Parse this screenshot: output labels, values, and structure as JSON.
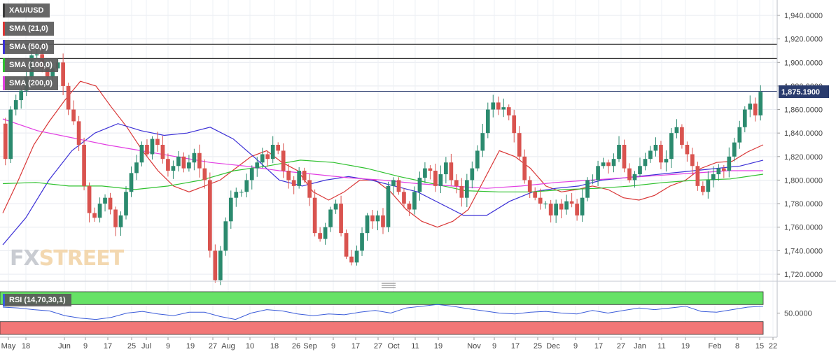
{
  "legend": [
    {
      "label": "XAU/USD",
      "color": "#3a3a3a"
    },
    {
      "label": "SMA (21,0)",
      "color": "#d93636"
    },
    {
      "label": "SMA (50,0)",
      "color": "#3b2fd6"
    },
    {
      "label": "SMA (100,0)",
      "color": "#2fc12f"
    },
    {
      "label": "SMA (200,0)",
      "color": "#e23ee2"
    }
  ],
  "rsi": {
    "label": "RSI (14,70,30,1)",
    "line_color": "#3a5bd9",
    "overbought_color": "#66e266",
    "oversold_color": "#f27777",
    "ticks": [
      "50.0000"
    ]
  },
  "watermark": {
    "part1": "FX",
    "part2": "STREET"
  },
  "chart_data": {
    "type": "candlestick",
    "title": "",
    "ylim": [
      1710,
      1950
    ],
    "yticks": [
      "1,940.0000",
      "1,920.0000",
      "1,900.0000",
      "1,880.0000",
      "1,860.0000",
      "1,840.0000",
      "1,820.0000",
      "1,800.0000",
      "1,780.0000",
      "1,760.0000",
      "1,740.0000",
      "1,720.0000"
    ],
    "xticks": [
      "May",
      "18",
      "Jun",
      "9",
      "17",
      "25",
      "Jul",
      "9",
      "19",
      "27",
      "Aug",
      "10",
      "18",
      "26",
      "Sep",
      "9",
      "17",
      "27",
      "Oct",
      "11",
      "19",
      "Nov",
      "9",
      "17",
      "25",
      "Dec",
      "9",
      "17",
      "27",
      "Jan",
      "11",
      "19",
      "Feb",
      "8",
      "15",
      "22"
    ],
    "last_price": "1,875.1900",
    "hlines": [
      1915.5,
      1903.5,
      1875.5
    ],
    "candle_colors": {
      "up": "#2b8a6e",
      "down": "#d9534f"
    },
    "anchors": [
      1848,
      1818,
      1860,
      1868,
      1876,
      1888,
      1906,
      1907,
      1895,
      1888,
      1895,
      1900,
      1880,
      1860,
      1850,
      1830,
      1795,
      1772,
      1768,
      1780,
      1785,
      1775,
      1760,
      1770,
      1790,
      1806,
      1815,
      1830,
      1822,
      1835,
      1830,
      1818,
      1808,
      1812,
      1820,
      1810,
      1815,
      1823,
      1810,
      1800,
      1740,
      1715,
      1740,
      1765,
      1785,
      1790,
      1790,
      1800,
      1810,
      1815,
      1822,
      1818,
      1830,
      1825,
      1808,
      1800,
      1795,
      1808,
      1800,
      1785,
      1755,
      1750,
      1760,
      1775,
      1780,
      1755,
      1735,
      1730,
      1740,
      1755,
      1770,
      1765,
      1770,
      1760,
      1795,
      1800,
      1790,
      1780,
      1775,
      1790,
      1802,
      1810,
      1808,
      1795,
      1805,
      1815,
      1800,
      1795,
      1785,
      1800,
      1810,
      1825,
      1840,
      1860,
      1866,
      1860,
      1862,
      1855,
      1840,
      1820,
      1800,
      1790,
      1785,
      1780,
      1780,
      1770,
      1780,
      1775,
      1782,
      1780,
      1770,
      1785,
      1800,
      1800,
      1812,
      1815,
      1812,
      1818,
      1830,
      1810,
      1800,
      1805,
      1812,
      1818,
      1825,
      1830,
      1815,
      1818,
      1840,
      1845,
      1830,
      1822,
      1812,
      1795,
      1790,
      1800,
      1805,
      1810,
      1808,
      1820,
      1832,
      1845,
      1860,
      1865,
      1855,
      1875
    ],
    "series": [
      {
        "name": "SMA (21,0)",
        "values": [
          1772,
          1800,
          1830,
          1850,
          1868,
          1884,
          1880,
          1862,
          1845,
          1825,
          1808,
          1795,
          1790,
          1795,
          1800,
          1810,
          1820,
          1825,
          1815,
          1808,
          1790,
          1783,
          1790,
          1800,
          1800,
          1790,
          1775,
          1765,
          1760,
          1765,
          1775,
          1800,
          1825,
          1820,
          1810,
          1795,
          1790,
          1792,
          1795,
          1792,
          1785,
          1783,
          1787,
          1795,
          1800,
          1810,
          1815,
          1816,
          1824,
          1830
        ]
      },
      {
        "name": "SMA (50,0)",
        "values": [
          1745,
          1768,
          1800,
          1825,
          1840,
          1848,
          1842,
          1838,
          1840,
          1845,
          1835,
          1818,
          1800,
          1795,
          1800,
          1803,
          1800,
          1795,
          1790,
          1780,
          1770,
          1770,
          1782,
          1790,
          1793,
          1795,
          1800,
          1802,
          1804,
          1806,
          1808,
          1810,
          1812,
          1817
        ]
      },
      {
        "name": "SMA (100,0)",
        "values": [
          1797,
          1798,
          1795,
          1795,
          1792,
          1795,
          1800,
          1808,
          1812,
          1817,
          1815,
          1810,
          1803,
          1797,
          1791,
          1790,
          1790,
          1792,
          1793,
          1795,
          1798,
          1800,
          1801,
          1805
        ]
      },
      {
        "name": "SMA (200,0)",
        "values": [
          1852,
          1842,
          1836,
          1830,
          1825,
          1820,
          1815,
          1812,
          1808,
          1805,
          1802,
          1800,
          1797,
          1795,
          1793,
          1795,
          1798,
          1800,
          1802,
          1804,
          1806,
          1808,
          1808
        ]
      }
    ],
    "rsi_values": [
      64,
      62,
      58,
      55,
      44,
      38,
      35,
      40,
      50,
      54,
      48,
      44,
      52,
      52,
      42,
      35,
      50,
      58,
      55,
      48,
      44,
      48,
      46,
      52,
      56,
      50,
      62,
      66,
      70,
      66,
      60,
      55,
      50,
      48,
      52,
      54,
      50,
      48,
      56,
      50,
      56,
      62,
      58,
      62,
      66,
      54,
      52,
      58,
      64,
      66
    ]
  }
}
